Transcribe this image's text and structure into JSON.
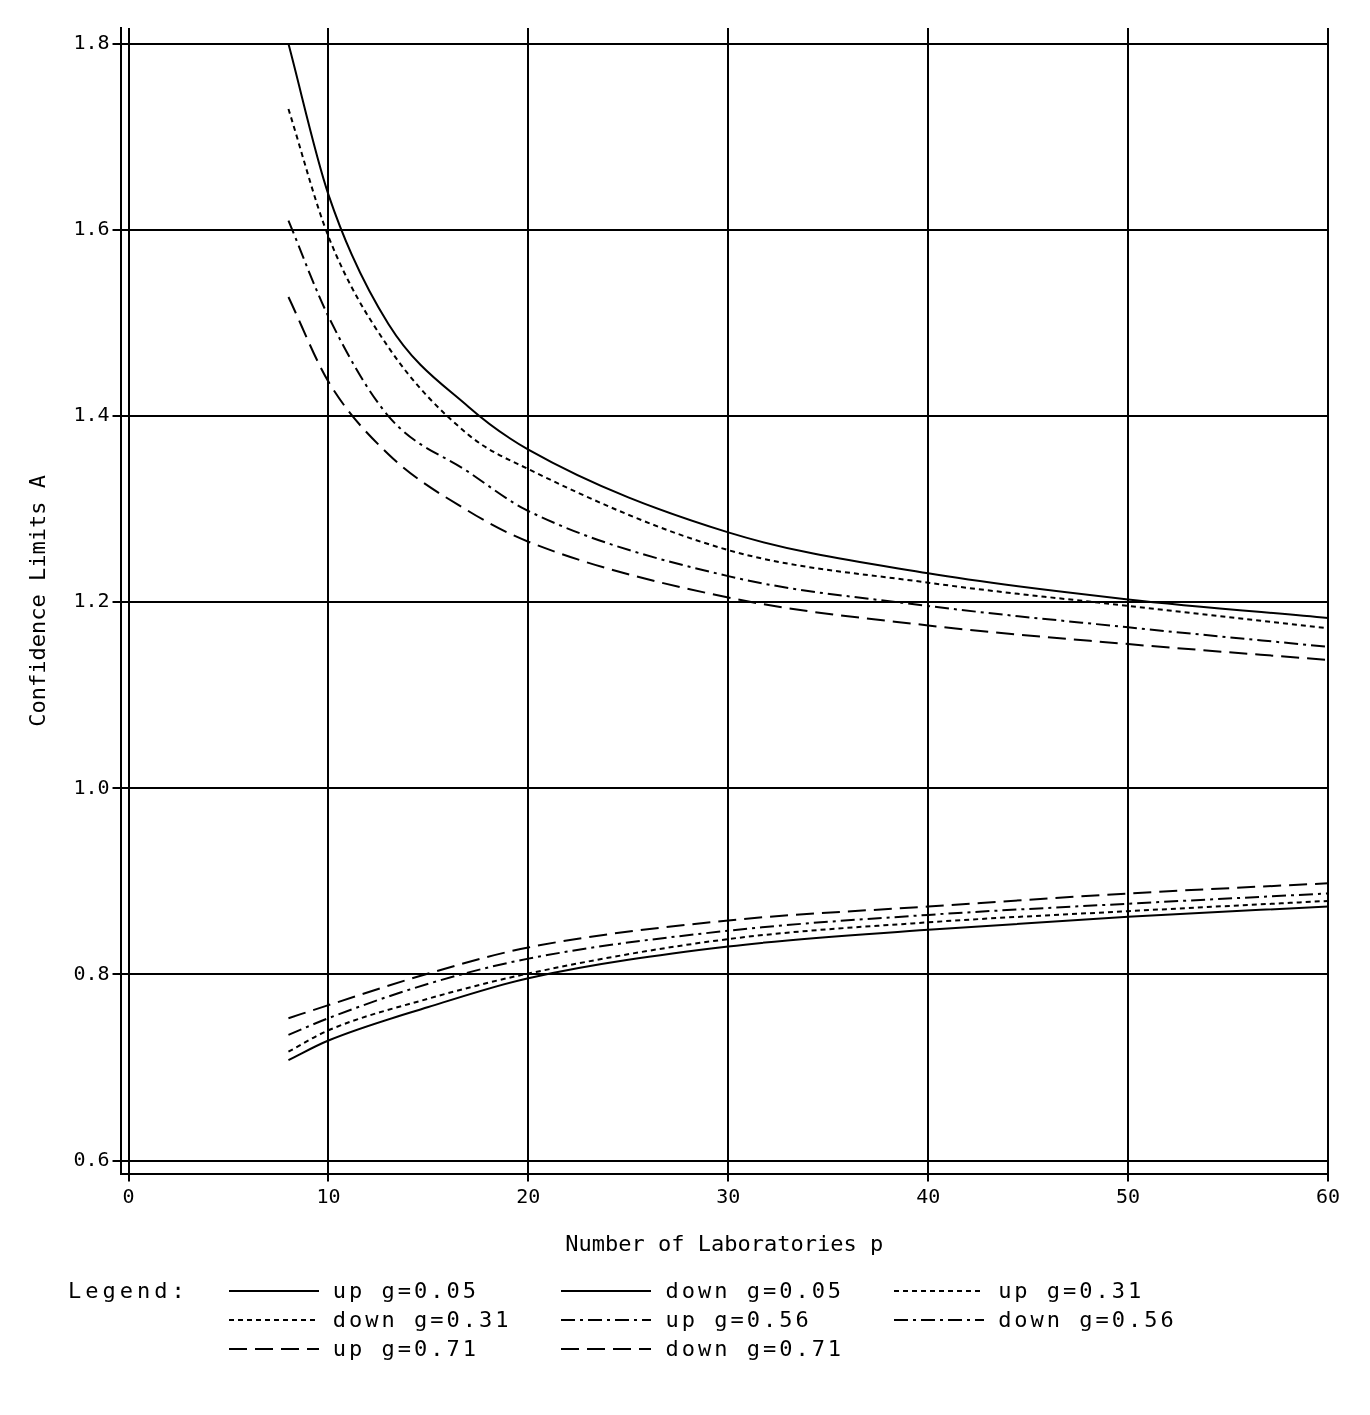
{
  "chart_data": {
    "type": "line",
    "xlabel": "Number of Laboratories p",
    "ylabel": "Confidence Limits A",
    "legend_title": "Legend:",
    "legend": "bottom",
    "grid": true,
    "marker": "none",
    "xlim": [
      -0.4,
      60
    ],
    "xticks": [
      0,
      10,
      20,
      30,
      40,
      50,
      60
    ],
    "ylim": [
      0.586,
      1.817
    ],
    "yticks": [
      {
        "value": 0.6,
        "label": "0.6"
      },
      {
        "value": 0.8,
        "label": "0.8"
      },
      {
        "value": 1,
        "label": "1.0"
      },
      {
        "value": 1.2,
        "label": "1.2"
      },
      {
        "value": 1.4,
        "label": "1.4"
      },
      {
        "value": 1.6,
        "label": "1.6"
      },
      {
        "value": 1.8,
        "label": "1.8"
      }
    ],
    "series": [
      {
        "name": "up g=0.05",
        "color": "#000000",
        "line_style": "solid",
        "x": [
          8,
          10,
          13,
          17,
          20,
          30,
          40,
          50,
          60
        ],
        "values": [
          1.8,
          1.638,
          1.499,
          1.41,
          1.364,
          1.275,
          1.231,
          1.203,
          1.183
        ]
      },
      {
        "name": "down g=0.05",
        "color": "#000000",
        "line_style": "solid",
        "x": [
          8,
          10,
          15,
          20,
          30,
          40,
          50,
          60
        ],
        "values": [
          0.708,
          0.729,
          0.765,
          0.796,
          0.83,
          0.848,
          0.862,
          0.873
        ]
      },
      {
        "name": "up g=0.31",
        "color": "#000000",
        "line_style": "dotted",
        "x": [
          8,
          10,
          13,
          17,
          20,
          30,
          40,
          50,
          60
        ],
        "values": [
          1.73,
          1.593,
          1.474,
          1.38,
          1.343,
          1.256,
          1.221,
          1.196,
          1.172
        ]
      },
      {
        "name": "down g=0.31",
        "color": "#000000",
        "line_style": "dotted",
        "x": [
          8,
          10,
          15,
          20,
          30,
          40,
          50,
          60
        ],
        "values": [
          0.717,
          0.74,
          0.774,
          0.801,
          0.838,
          0.856,
          0.868,
          0.879
        ]
      },
      {
        "name": "up g=0.56",
        "color": "#000000",
        "line_style": "dashdot",
        "x": [
          8,
          10,
          13,
          17,
          20,
          30,
          40,
          50,
          60
        ],
        "values": [
          1.61,
          1.507,
          1.4,
          1.34,
          1.298,
          1.228,
          1.196,
          1.173,
          1.152
        ]
      },
      {
        "name": "down g=0.56",
        "color": "#000000",
        "line_style": "dashdot",
        "x": [
          8,
          10,
          15,
          20,
          30,
          40,
          50,
          60
        ],
        "values": [
          0.735,
          0.753,
          0.79,
          0.817,
          0.847,
          0.864,
          0.876,
          0.887
        ]
      },
      {
        "name": "up g=0.71",
        "color": "#000000",
        "line_style": "dashed",
        "x": [
          8,
          10,
          13,
          17,
          20,
          30,
          40,
          50,
          60
        ],
        "values": [
          1.528,
          1.437,
          1.359,
          1.298,
          1.265,
          1.205,
          1.175,
          1.155,
          1.138
        ]
      },
      {
        "name": "down g=0.71",
        "color": "#000000",
        "line_style": "dashed",
        "x": [
          8,
          10,
          15,
          20,
          30,
          40,
          50,
          60
        ],
        "values": [
          0.753,
          0.767,
          0.801,
          0.829,
          0.858,
          0.873,
          0.887,
          0.898
        ]
      }
    ]
  }
}
